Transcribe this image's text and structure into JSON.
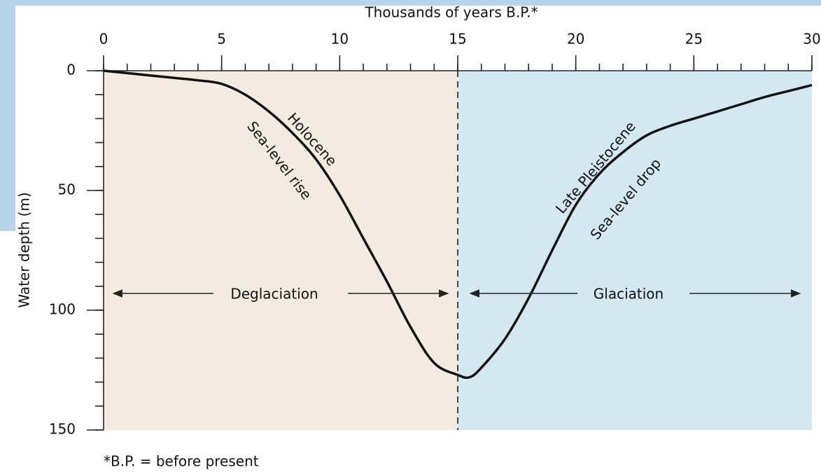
{
  "chart_data": {
    "type": "line",
    "title": "Thousands of years B.P.*",
    "y_label": "Water depth (m)",
    "footnote": "*B.P. = before present",
    "x": [
      0,
      1,
      2,
      3,
      4,
      5,
      6,
      7,
      8,
      9,
      10,
      11,
      12,
      13,
      14,
      15,
      15.5,
      16,
      17,
      18,
      19,
      20,
      21,
      22,
      23,
      24,
      25,
      26,
      27,
      28,
      29,
      30
    ],
    "series": [
      {
        "name": "Sea level",
        "color": "#111111",
        "values": [
          0,
          1,
          2,
          3,
          4,
          5.5,
          10,
          17,
          26,
          37,
          52,
          70,
          88,
          107,
          122,
          127,
          128,
          124,
          112,
          95,
          75,
          56,
          43,
          34,
          27,
          23,
          20,
          17,
          14,
          11,
          8.5,
          6
        ]
      }
    ],
    "xlim": [
      0,
      30
    ],
    "xticks": [
      0,
      5,
      10,
      15,
      20,
      25,
      30
    ],
    "xminor_ticks": [
      0,
      1,
      2,
      3,
      4,
      5,
      6,
      7,
      8,
      9,
      10,
      11,
      12,
      13,
      14,
      15,
      16,
      17,
      18,
      19,
      20,
      21,
      22,
      23,
      24,
      25,
      26,
      27,
      28,
      29,
      30
    ],
    "ylim": [
      0,
      150
    ],
    "yticks": [
      0,
      50,
      100,
      150
    ],
    "yminor_ticks": [
      0,
      10,
      20,
      30,
      40,
      50,
      60,
      70,
      80,
      90,
      100,
      110,
      120,
      130,
      140,
      150
    ],
    "y_inverted": true,
    "spans": [
      {
        "from": 0,
        "to": 15,
        "color": "#f3ebe0"
      },
      {
        "from": 15,
        "to": 30,
        "color": "#d3e8f1"
      }
    ],
    "annotations": [
      "Holocene",
      "Sea-level rise",
      "Late Pleistocene",
      "Sea-level drop",
      "Deglaciation",
      "Glaciation"
    ]
  }
}
